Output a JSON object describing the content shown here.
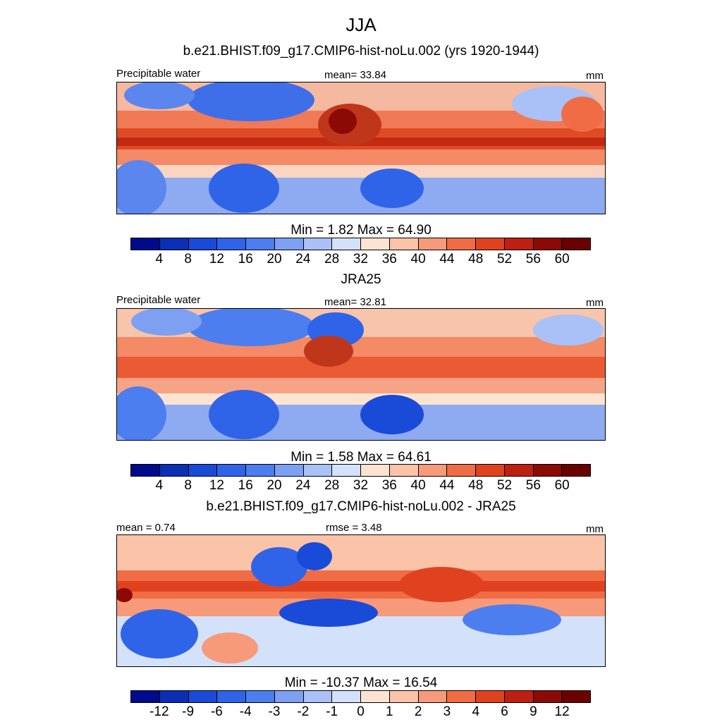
{
  "figure_title": "JJA",
  "panels": [
    {
      "heading": "b.e21.BHIST.f09_g17.CMIP6-hist-noLu.002 (yrs 1920-1944)",
      "left_label": "Precipitable water",
      "center_label": "mean=  33.84",
      "right_label": "mm",
      "minmax": "Min =   1.82 Max =  64.90",
      "colorbar": "abs"
    },
    {
      "heading": "JRA25",
      "left_label": "Precipitable water",
      "center_label": "mean=  32.81",
      "right_label": "mm",
      "minmax": "Min =   1.58 Max =  64.61",
      "colorbar": "abs"
    },
    {
      "heading": "b.e21.BHIST.f09_g17.CMIP6-hist-noLu.002 - JRA25",
      "left_label": "mean =   0.74",
      "center_label": "rmse =   3.48",
      "right_label": "mm",
      "minmax": "Min = -10.37 Max =  16.54",
      "colorbar": "diff"
    }
  ],
  "colorbars": {
    "abs": {
      "ticks": [
        "4",
        "8",
        "12",
        "16",
        "20",
        "24",
        "28",
        "32",
        "36",
        "40",
        "44",
        "48",
        "52",
        "56",
        "60"
      ],
      "colors": [
        "#000a8c",
        "#0a2fb4",
        "#1a4ad8",
        "#2f64e8",
        "#4c7ef0",
        "#7ea0f2",
        "#a9c1f6",
        "#d3e2fa",
        "#fde4d2",
        "#fbc3a8",
        "#f79a7a",
        "#f06c45",
        "#e04220",
        "#bd2010",
        "#8c0a05",
        "#6a0000"
      ]
    },
    "diff": {
      "ticks": [
        "-12",
        "-9",
        "-6",
        "-4",
        "-3",
        "-2",
        "-1",
        "0",
        "1",
        "2",
        "3",
        "4",
        "6",
        "9",
        "12"
      ],
      "colors": [
        "#000a8c",
        "#0a2fb4",
        "#1a4ad8",
        "#2f64e8",
        "#4c7ef0",
        "#7ea0f2",
        "#a9c1f6",
        "#d3e2fa",
        "#fde4d2",
        "#fbc3a8",
        "#f79a7a",
        "#f06c45",
        "#e04220",
        "#bd2010",
        "#8c0a05",
        "#6a0000"
      ]
    }
  }
}
